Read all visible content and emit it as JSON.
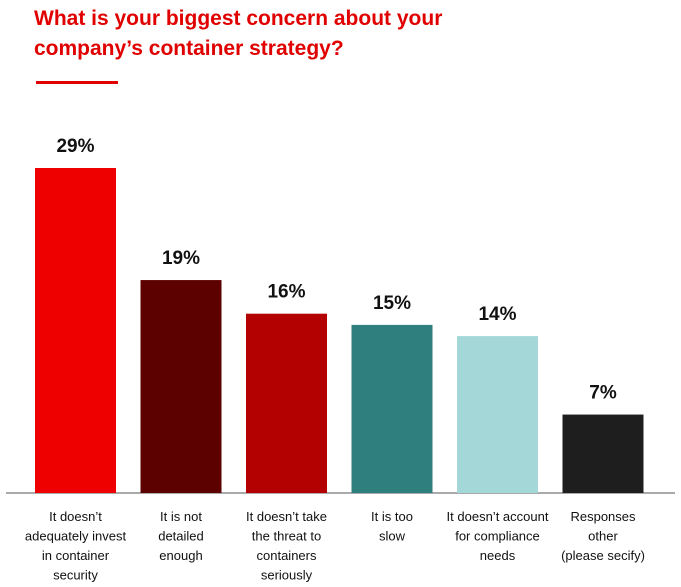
{
  "chart_data": {
    "type": "bar",
    "title_lines": [
      "What is your biggest concern about your",
      "company’s container strategy?"
    ],
    "categories": [
      [
        "It doesn’t",
        "adequately invest",
        "in container",
        "security"
      ],
      [
        "It is not",
        "detailed",
        "enough"
      ],
      [
        "It doesn’t take",
        "the threat to",
        "containers",
        "seriously"
      ],
      [
        "It is too",
        "slow"
      ],
      [
        "It doesn’t account",
        "for compliance",
        "needs"
      ],
      [
        "Responses",
        "other",
        "(please secify)"
      ]
    ],
    "values": [
      29,
      19,
      16,
      15,
      14,
      7
    ],
    "value_labels": [
      "29%",
      "19%",
      "16%",
      "15%",
      "14%",
      "7%"
    ],
    "colors": [
      "#ee0000",
      "#5c0000",
      "#b30000",
      "#2e7f7d",
      "#a4d8d8",
      "#1e1e1e"
    ],
    "ylim": [
      0,
      29
    ],
    "grid": false,
    "legend": "none"
  }
}
